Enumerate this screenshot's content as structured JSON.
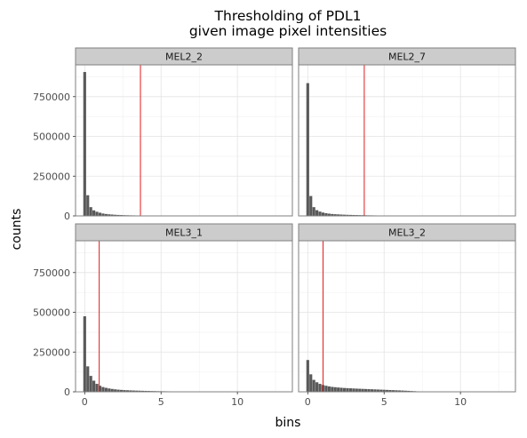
{
  "chart_data": {
    "type": "bar",
    "title": "Thresholding of PDL1",
    "subtitle": "given image pixel intensities",
    "xlabel": "bins",
    "ylabel": "counts",
    "xlim": [
      -0.6,
      13.6
    ],
    "ylim": [
      0,
      950000
    ],
    "x_ticks": [
      0,
      5,
      10
    ],
    "x_tick_labels": [
      "0",
      "5",
      "10"
    ],
    "y_ticks": [
      0,
      250000,
      500000,
      750000
    ],
    "y_tick_labels": [
      "0",
      "250000",
      "500000",
      "750000"
    ],
    "grid": true,
    "bar_color": "#595959",
    "threshold_color": "#e41a1c",
    "strip_color": "#cccccc",
    "panels": [
      {
        "name": "MEL2_2",
        "threshold": 3.65,
        "x": [
          0,
          0.2,
          0.4,
          0.6,
          0.8,
          1.0,
          1.2,
          1.4,
          1.6,
          1.8,
          2.0,
          2.2,
          2.4,
          2.6,
          2.8,
          3.0,
          3.2,
          3.4,
          3.6,
          3.8,
          4.0,
          4.2,
          4.4
        ],
        "values": [
          905000,
          130000,
          55000,
          35000,
          26000,
          20000,
          15000,
          12000,
          10000,
          8500,
          7000,
          6000,
          5200,
          4500,
          4000,
          3600,
          3200,
          2800,
          2500,
          2200,
          1900,
          1600,
          1300
        ]
      },
      {
        "name": "MEL2_7",
        "threshold": 3.7,
        "x": [
          0,
          0.2,
          0.4,
          0.6,
          0.8,
          1.0,
          1.2,
          1.4,
          1.6,
          1.8,
          2.0,
          2.2,
          2.4,
          2.6,
          2.8,
          3.0,
          3.2,
          3.4,
          3.6,
          3.8,
          4.0,
          4.2,
          4.4,
          4.6,
          4.8,
          5.0,
          5.2,
          5.4
        ],
        "values": [
          835000,
          125000,
          55000,
          36000,
          27000,
          21000,
          17000,
          14000,
          12000,
          10500,
          9500,
          8500,
          7500,
          6800,
          6200,
          5700,
          5200,
          4800,
          4400,
          4000,
          3600,
          3300,
          3000,
          2700,
          2400,
          2100,
          1800,
          1500
        ]
      },
      {
        "name": "MEL3_1",
        "threshold": 0.95,
        "x": [
          0,
          0.2,
          0.4,
          0.6,
          0.8,
          1.0,
          1.2,
          1.4,
          1.6,
          1.8,
          2.0,
          2.2,
          2.4,
          2.6,
          2.8,
          3.0,
          3.2,
          3.4,
          3.6,
          3.8,
          4.0,
          4.2,
          4.4,
          4.6,
          4.8,
          5.0,
          5.2,
          5.4,
          5.6,
          5.8,
          6.0,
          6.2
        ],
        "values": [
          475000,
          160000,
          100000,
          70000,
          50000,
          38000,
          30000,
          25000,
          21000,
          18000,
          15500,
          13500,
          12000,
          10800,
          9800,
          9000,
          8200,
          7500,
          6900,
          6300,
          5800,
          5300,
          4900,
          4500,
          4100,
          3700,
          3400,
          3100,
          2800,
          2500,
          2200,
          1900
        ]
      },
      {
        "name": "MEL3_2",
        "threshold": 1.0,
        "x": [
          0,
          0.2,
          0.4,
          0.6,
          0.8,
          1.0,
          1.2,
          1.4,
          1.6,
          1.8,
          2.0,
          2.2,
          2.4,
          2.6,
          2.8,
          3.0,
          3.2,
          3.4,
          3.6,
          3.8,
          4.0,
          4.2,
          4.4,
          4.6,
          4.8,
          5.0,
          5.2,
          5.4,
          5.6,
          5.8,
          6.0,
          6.2,
          6.4,
          6.6,
          6.8,
          7.0,
          7.2
        ],
        "values": [
          200000,
          110000,
          75000,
          60000,
          50000,
          43000,
          38000,
          34000,
          31000,
          29000,
          27000,
          25500,
          24000,
          23000,
          22000,
          21000,
          20000,
          19200,
          18400,
          17600,
          16800,
          16000,
          15200,
          14400,
          13600,
          12800,
          12000,
          11200,
          10400,
          9600,
          8800,
          8000,
          7000,
          6000,
          5000,
          4000,
          3000
        ]
      }
    ]
  }
}
